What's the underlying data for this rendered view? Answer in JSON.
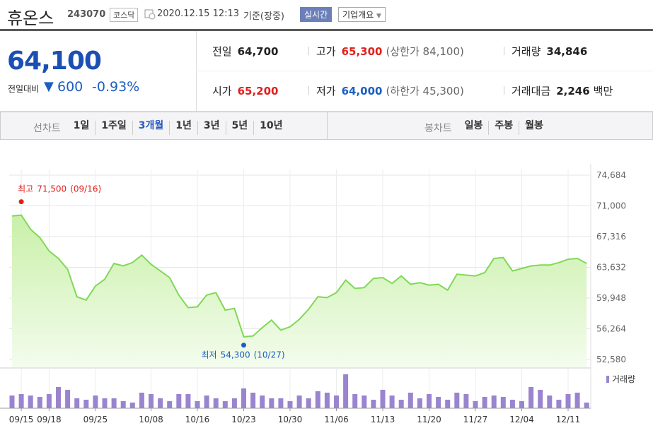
{
  "header": {
    "name": "휴온스",
    "code": "243070",
    "market": "코스닥",
    "datetime": "2020.12.15 12:13",
    "basis": "기준(장중)",
    "realtime": "실시간",
    "company_info": "기업개요"
  },
  "quote": {
    "price": "64,100",
    "change_label": "전일대비",
    "change": "600",
    "change_pct": "-0.93%"
  },
  "stats": [
    {
      "label": "전일",
      "value": "64,700"
    },
    {
      "label": "고가",
      "value": "65,300",
      "note": "(상한가 84,100)",
      "color": "#e0211c"
    },
    {
      "label": "거래량",
      "value": "34,846"
    },
    {
      "label": "시가",
      "value": "65,200",
      "color": "#e0211c"
    },
    {
      "label": "저가",
      "value": "64,000",
      "note": "(하한가 45,300)",
      "color": "#1b5fc1"
    },
    {
      "label": "거래대금",
      "value": "2,246",
      "unit": "백만"
    }
  ],
  "tabs": {
    "line_label": "선차트",
    "line_periods": [
      "1일",
      "1주일",
      "3개월",
      "1년",
      "3년",
      "5년",
      "10년"
    ],
    "selected": 2,
    "candle_label": "봉차트",
    "candle_periods": [
      "일봉",
      "주봉",
      "월봉"
    ]
  },
  "chart_data": {
    "type": "line",
    "color": "#7fd957",
    "categories": [
      null,
      "09/15",
      null,
      null,
      "09/18",
      null,
      null,
      null,
      null,
      "09/25",
      null,
      null,
      null,
      null,
      null,
      "10/08",
      null,
      null,
      null,
      null,
      "10/16",
      null,
      null,
      null,
      null,
      "10/23",
      null,
      null,
      null,
      null,
      "10/30",
      null,
      null,
      null,
      null,
      "11/06",
      null,
      null,
      null,
      null,
      "11/13",
      null,
      null,
      null,
      null,
      "11/20",
      null,
      null,
      null,
      null,
      "11/27",
      null,
      null,
      null,
      null,
      "12/04",
      null,
      null,
      null,
      null,
      "12/11",
      null,
      null
    ],
    "values": [
      69800,
      69900,
      68200,
      67200,
      65600,
      64700,
      63400,
      60100,
      59700,
      61400,
      62200,
      64100,
      63800,
      64200,
      65100,
      64000,
      63200,
      62400,
      60300,
      58800,
      58900,
      60300,
      60600,
      58500,
      58700,
      55300,
      55400,
      56400,
      57300,
      56100,
      56500,
      57400,
      58600,
      60100,
      60000,
      60600,
      62100,
      61100,
      61200,
      62300,
      62400,
      61700,
      62600,
      61600,
      61800,
      61500,
      61600,
      60900,
      62800,
      62700,
      62600,
      63000,
      64700,
      64800,
      63200,
      63500,
      63800,
      63900,
      63900,
      64200,
      64600,
      64700,
      64100
    ],
    "ylim": [
      52580,
      74684
    ],
    "yticks": [
      {
        "value": 74684,
        "label": "74,684"
      },
      {
        "value": 71000,
        "label": "71,000"
      },
      {
        "value": 67316,
        "label": "67,316"
      },
      {
        "value": 63632,
        "label": "63,632"
      },
      {
        "value": 59948,
        "label": "59,948"
      },
      {
        "value": 56264,
        "label": "56,264"
      },
      {
        "value": 52580,
        "label": "52,580"
      }
    ],
    "grid": true,
    "annotations": [
      {
        "at": "max",
        "label": "최고",
        "value": 71500,
        "value_label": "71,500",
        "date": "(09/16)",
        "color": "#e0211c"
      },
      {
        "at": "min",
        "label": "최저",
        "value": 54300,
        "value_label": "54,300",
        "date": "(10/27)",
        "color": "#1b5fc1"
      }
    ],
    "volume": {
      "name": "거래량",
      "color": "#9a84d0",
      "ylim": [
        0,
        230000
      ],
      "values": [
        78300,
        87000,
        78300,
        69600,
        87000,
        130500,
        113100,
        60900,
        52200,
        78300,
        60900,
        60900,
        43500,
        34800,
        95700,
        87000,
        60900,
        43500,
        87000,
        87000,
        43500,
        78300,
        60900,
        43500,
        60900,
        121800,
        95700,
        78300,
        60900,
        60900,
        43500,
        78300,
        60900,
        104400,
        95700,
        78300,
        208800,
        87000,
        78300,
        52200,
        113100,
        78300,
        52200,
        95700,
        60900,
        87000,
        69600,
        52200,
        95700,
        87000,
        43500,
        69600,
        78300,
        69600,
        52200,
        43500,
        130500,
        113100,
        78300,
        52200,
        87000,
        95700,
        34846
      ]
    }
  }
}
